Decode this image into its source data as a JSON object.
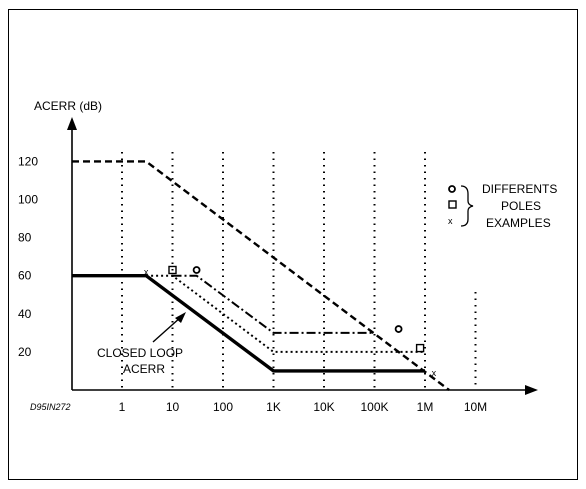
{
  "chart_data": {
    "type": "line",
    "ylabel": "ACERR (dB)",
    "code": "D95IN272",
    "x_ticks": [
      "1",
      "10",
      "100",
      "1K",
      "10K",
      "100K",
      "1M",
      "10M"
    ],
    "y_ticks": [
      "20",
      "40",
      "60",
      "80",
      "100",
      "120"
    ],
    "x_scale": "log",
    "grid": "dotted vertical lines at decades",
    "series": [
      {
        "style": "solid-thick",
        "points": [
          [
            0.3,
            60
          ],
          [
            3,
            60
          ],
          [
            1000,
            10
          ],
          [
            1000000,
            10
          ]
        ]
      },
      {
        "style": "dashed",
        "points": [
          [
            0.3,
            120
          ],
          [
            3,
            120
          ],
          [
            3000000,
            0
          ]
        ]
      },
      {
        "style": "dash-dot",
        "points": [
          [
            10,
            60
          ],
          [
            30,
            60
          ],
          [
            1000,
            30
          ],
          [
            100000,
            30
          ]
        ]
      },
      {
        "style": "dotted",
        "points": [
          [
            3,
            60
          ],
          [
            10,
            60
          ],
          [
            1000,
            20
          ],
          [
            1000000,
            20
          ]
        ]
      }
    ],
    "markers": [
      {
        "symbol": "x",
        "x": 3,
        "y": 62
      },
      {
        "symbol": "square",
        "x": 10,
        "y": 63
      },
      {
        "symbol": "circle",
        "x": 30,
        "y": 63
      },
      {
        "symbol": "circle",
        "x": 300000,
        "y": 32
      },
      {
        "symbol": "square",
        "x": 800000,
        "y": 22
      },
      {
        "symbol": "x",
        "x": 1500000,
        "y": 9
      }
    ],
    "annotations": {
      "closed_loop": [
        "CLOSED LOOP",
        "ACERR"
      ],
      "legend_lines": [
        "DIFFERENTS",
        "POLES",
        "EXAMPLES"
      ],
      "legend_symbols": [
        "circle",
        "square",
        "x"
      ]
    }
  }
}
